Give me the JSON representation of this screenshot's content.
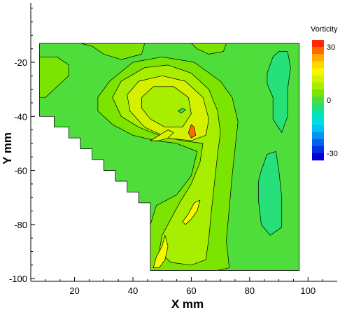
{
  "chart_data": {
    "type": "heatmap",
    "title": "",
    "xlabel": "X mm",
    "ylabel": "Y mm",
    "xlim": [
      5,
      110
    ],
    "ylim": [
      -101,
      2
    ],
    "x_ticks": [
      20,
      40,
      60,
      80,
      100
    ],
    "y_ticks": [
      -20,
      -40,
      -60,
      -80,
      -100
    ],
    "x_tick_labels": [
      "20",
      "40",
      "60",
      "80",
      "100"
    ],
    "y_tick_labels": [
      "-20",
      "-40",
      "-60",
      "-80",
      "-100"
    ],
    "grid": false,
    "legend": {
      "title": "Vorticity",
      "placement": "right",
      "tick_labels": [
        "30",
        "0",
        "-30"
      ],
      "tick_values": [
        30,
        0,
        -30
      ],
      "min": -34,
      "max": 34,
      "levels": [
        {
          "value": 32,
          "color": "#ff2a00"
        },
        {
          "value": 28,
          "color": "#ff6a00"
        },
        {
          "value": 24,
          "color": "#ffab00"
        },
        {
          "value": 20,
          "color": "#ffd700"
        },
        {
          "value": 16,
          "color": "#f7f700"
        },
        {
          "value": 12,
          "color": "#d4f200"
        },
        {
          "value": 8,
          "color": "#a8ee00"
        },
        {
          "value": 4,
          "color": "#7be400"
        },
        {
          "value": 0,
          "color": "#4fdd3c"
        },
        {
          "value": -4,
          "color": "#26e07a"
        },
        {
          "value": -8,
          "color": "#00e6b0"
        },
        {
          "value": -12,
          "color": "#00dfe0"
        },
        {
          "value": -16,
          "color": "#00c4f0"
        },
        {
          "value": -20,
          "color": "#0096ef"
        },
        {
          "value": -24,
          "color": "#0064ec"
        },
        {
          "value": -28,
          "color": "#0030e6"
        },
        {
          "value": -32,
          "color": "#0000d8"
        }
      ]
    },
    "domain": {
      "x_range": [
        8,
        97
      ],
      "y_range": [
        -97,
        -13
      ],
      "boundary": [
        [
          8,
          -13
        ],
        [
          97,
          -13
        ],
        [
          97,
          -97
        ],
        [
          46,
          -97
        ],
        [
          46,
          -72
        ],
        [
          42,
          -72
        ],
        [
          42,
          -68
        ],
        [
          38,
          -68
        ],
        [
          38,
          -64
        ],
        [
          34,
          -64
        ],
        [
          34,
          -60
        ],
        [
          30,
          -60
        ],
        [
          30,
          -56
        ],
        [
          26,
          -56
        ],
        [
          26,
          -52
        ],
        [
          22,
          -52
        ],
        [
          22,
          -48
        ],
        [
          18,
          -48
        ],
        [
          18,
          -44
        ],
        [
          13,
          -44
        ],
        [
          13,
          -40
        ],
        [
          8,
          -40
        ]
      ]
    },
    "regions": [
      {
        "value": 0,
        "color": "#4fdd3c",
        "points": [
          [
            8,
            -13
          ],
          [
            97,
            -13
          ],
          [
            97,
            -97
          ],
          [
            46,
            -97
          ],
          [
            46,
            -72
          ],
          [
            42,
            -72
          ],
          [
            42,
            -68
          ],
          [
            38,
            -68
          ],
          [
            38,
            -64
          ],
          [
            34,
            -64
          ],
          [
            34,
            -60
          ],
          [
            30,
            -60
          ],
          [
            30,
            -56
          ],
          [
            26,
            -56
          ],
          [
            26,
            -52
          ],
          [
            22,
            -52
          ],
          [
            22,
            -48
          ],
          [
            18,
            -48
          ],
          [
            18,
            -44
          ],
          [
            13,
            -44
          ],
          [
            13,
            -40
          ],
          [
            8,
            -40
          ]
        ]
      },
      {
        "value": 4,
        "color": "#7be400",
        "points": [
          [
            22,
            -13
          ],
          [
            44,
            -13
          ],
          [
            43,
            -17
          ],
          [
            36,
            -19
          ],
          [
            30,
            -17
          ],
          [
            26,
            -14
          ]
        ]
      },
      {
        "value": 4,
        "color": "#7be400",
        "points": [
          [
            60,
            -13
          ],
          [
            72,
            -13
          ],
          [
            71,
            -16
          ],
          [
            66,
            -17
          ],
          [
            62,
            -15
          ]
        ]
      },
      {
        "value": 4,
        "color": "#7be400",
        "points": [
          [
            8,
            -18
          ],
          [
            14,
            -18
          ],
          [
            18,
            -21
          ],
          [
            18,
            -25
          ],
          [
            15,
            -28
          ],
          [
            12,
            -31
          ],
          [
            10,
            -33
          ],
          [
            8,
            -33
          ]
        ]
      },
      {
        "value": 4,
        "color": "#7be400",
        "points": [
          [
            28,
            -33
          ],
          [
            32,
            -27
          ],
          [
            40,
            -20
          ],
          [
            50,
            -18
          ],
          [
            61,
            -20
          ],
          [
            70,
            -27
          ],
          [
            74,
            -33
          ],
          [
            76,
            -42
          ],
          [
            75,
            -52
          ],
          [
            74,
            -62
          ],
          [
            73,
            -74
          ],
          [
            72,
            -86
          ],
          [
            73,
            -96
          ],
          [
            69,
            -97
          ],
          [
            46,
            -97
          ],
          [
            46,
            -80
          ],
          [
            48,
            -73
          ],
          [
            55,
            -69
          ],
          [
            60,
            -62
          ],
          [
            62,
            -53
          ],
          [
            55,
            -50
          ],
          [
            48,
            -49
          ],
          [
            40,
            -47
          ],
          [
            33,
            -43
          ],
          [
            28,
            -38
          ]
        ]
      },
      {
        "value": 8,
        "color": "#a8ee00",
        "points": [
          [
            33,
            -33
          ],
          [
            36,
            -27
          ],
          [
            44,
            -22
          ],
          [
            52,
            -21
          ],
          [
            60,
            -24
          ],
          [
            66,
            -30
          ],
          [
            69,
            -38
          ],
          [
            70,
            -46
          ],
          [
            69,
            -54
          ],
          [
            68,
            -64
          ],
          [
            67,
            -74
          ],
          [
            66,
            -85
          ],
          [
            65,
            -93
          ],
          [
            60,
            -95
          ],
          [
            53,
            -94
          ],
          [
            49,
            -90
          ],
          [
            50,
            -84
          ],
          [
            53,
            -78
          ],
          [
            56,
            -72
          ],
          [
            60,
            -65
          ],
          [
            63,
            -57
          ],
          [
            64,
            -50
          ],
          [
            57,
            -49
          ],
          [
            49,
            -47
          ],
          [
            42,
            -44
          ],
          [
            36,
            -40
          ]
        ]
      },
      {
        "value": 12,
        "color": "#d4f200",
        "points": [
          [
            38,
            -32
          ],
          [
            42,
            -27
          ],
          [
            50,
            -25
          ],
          [
            58,
            -27
          ],
          [
            64,
            -33
          ],
          [
            66,
            -41
          ],
          [
            65,
            -47
          ],
          [
            60,
            -49
          ],
          [
            52,
            -48
          ],
          [
            44,
            -44
          ],
          [
            39,
            -38
          ]
        ]
      },
      {
        "value": 8,
        "color": "#a8ee00",
        "points": [
          [
            43,
            -33
          ],
          [
            47,
            -29
          ],
          [
            54,
            -29
          ],
          [
            59,
            -33
          ],
          [
            60,
            -39
          ],
          [
            57,
            -44
          ],
          [
            51,
            -44
          ],
          [
            46,
            -41
          ],
          [
            43,
            -37
          ]
        ]
      },
      {
        "value": 12,
        "color": "#d4f200",
        "points": [
          [
            46,
            -49
          ],
          [
            49,
            -47
          ],
          [
            52,
            -45
          ],
          [
            54,
            -46
          ],
          [
            52,
            -48
          ],
          [
            49,
            -49
          ]
        ]
      },
      {
        "value": 16,
        "color": "#f7f700",
        "points": [
          [
            59,
            -76
          ],
          [
            61,
            -72
          ],
          [
            63,
            -71
          ],
          [
            62,
            -75
          ],
          [
            60,
            -78
          ],
          [
            58,
            -80
          ],
          [
            57,
            -79
          ]
        ]
      },
      {
        "value": 16,
        "color": "#f7f700",
        "points": [
          [
            47,
            -96
          ],
          [
            48,
            -92
          ],
          [
            50,
            -88
          ],
          [
            51,
            -84
          ],
          [
            52,
            -88
          ],
          [
            51,
            -93
          ],
          [
            49,
            -96
          ]
        ]
      },
      {
        "value": 28,
        "color": "#ff6a00",
        "points": [
          [
            59,
            -46
          ],
          [
            60,
            -43
          ],
          [
            61,
            -44
          ],
          [
            61.5,
            -47
          ],
          [
            60,
            -48
          ]
        ]
      },
      {
        "value": -4,
        "color": "#26e07a",
        "points": [
          [
            55.5,
            -38
          ],
          [
            57,
            -37
          ],
          [
            58,
            -37.6
          ],
          [
            56.5,
            -38.8
          ]
        ]
      },
      {
        "value": -4,
        "color": "#26e07a",
        "points": [
          [
            86,
            -24
          ],
          [
            88,
            -18
          ],
          [
            90,
            -16
          ],
          [
            93,
            -16
          ],
          [
            94,
            -22
          ],
          [
            93,
            -30
          ],
          [
            93,
            -40
          ],
          [
            91,
            -46
          ],
          [
            88,
            -41
          ],
          [
            88,
            -33
          ],
          [
            86,
            -28
          ]
        ]
      },
      {
        "value": -4,
        "color": "#26e07a",
        "points": [
          [
            84,
            -60
          ],
          [
            86,
            -54
          ],
          [
            89,
            -53
          ],
          [
            90,
            -60
          ],
          [
            91,
            -70
          ],
          [
            91,
            -81
          ],
          [
            87,
            -84
          ],
          [
            84,
            -80
          ],
          [
            83,
            -71
          ],
          [
            83,
            -64
          ]
        ]
      }
    ]
  }
}
